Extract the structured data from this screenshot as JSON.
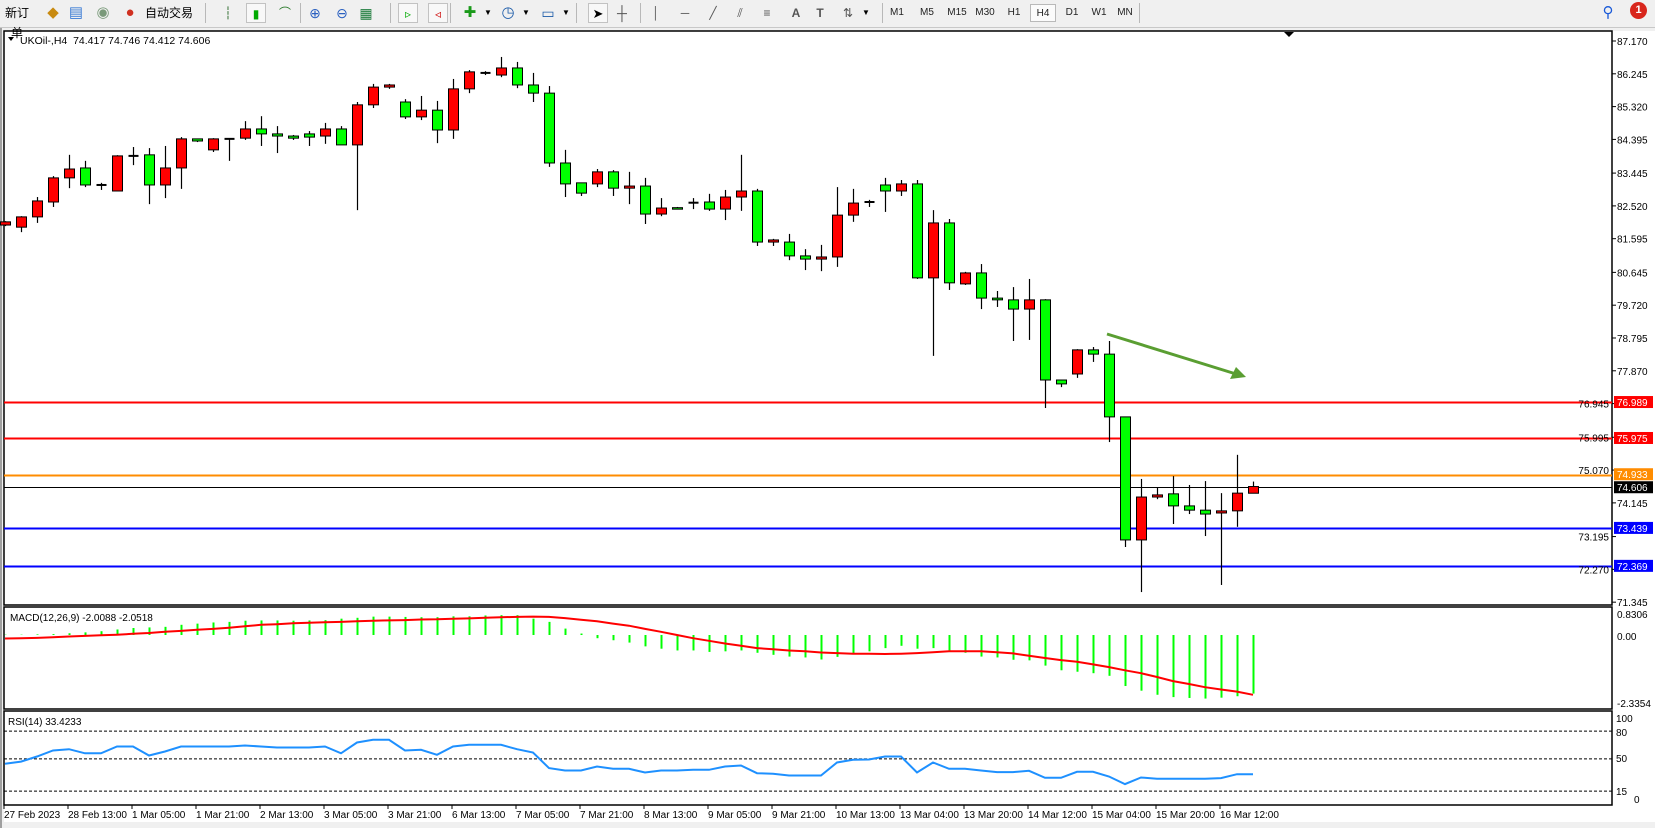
{
  "toolbar": {
    "new_order_label": "新订单",
    "auto_trading_label": "自动交易",
    "timeframes": [
      "M1",
      "M5",
      "M15",
      "M30",
      "H1",
      "H4",
      "D1",
      "W1",
      "MN"
    ],
    "active_timeframe": "H4",
    "notification_count": "1"
  },
  "chart": {
    "header": "UKOil-,H4  74.417 74.746 74.412 74.606",
    "symbol": "UKOil-",
    "timeframe": "H4",
    "ohlc_last": {
      "open": 74.417,
      "high": 74.746,
      "low": 74.412,
      "close": 74.606
    },
    "bull_color": "#ff0000",
    "bear_color": "#00ff00",
    "price_ticks": [
      "87.170",
      "86.245",
      "85.320",
      "84.395",
      "83.445",
      "82.520",
      "81.595",
      "80.645",
      "79.720",
      "78.795",
      "77.870",
      "76.945",
      "75.995",
      "75.070",
      "74.145",
      "73.195",
      "72.270",
      "71.345"
    ],
    "levels": [
      {
        "price": "76.989",
        "color": "#ff0000"
      },
      {
        "price": "75.975",
        "color": "#ff0000"
      },
      {
        "price": "74.933",
        "color": "#ff8c00"
      },
      {
        "price": "74.606",
        "color": "#000000"
      },
      {
        "price": "73.439",
        "color": "#0000ff"
      },
      {
        "price": "72.369",
        "color": "#0000ff"
      }
    ],
    "arrow_color": "#5a9e32",
    "time_labels": [
      "27 Feb 2023",
      "28 Feb 13:00",
      "1 Mar 05:00",
      "1 Mar 21:00",
      "2 Mar 13:00",
      "3 Mar 05:00",
      "3 Mar 21:00",
      "6 Mar 13:00",
      "7 Mar 05:00",
      "7 Mar 21:00",
      "8 Mar 13:00",
      "9 Mar 05:00",
      "9 Mar 21:00",
      "10 Mar 13:00",
      "13 Mar 04:00",
      "13 Mar 20:00",
      "14 Mar 12:00",
      "15 Mar 04:00",
      "15 Mar 20:00",
      "16 Mar 12:00"
    ]
  },
  "chart_data": {
    "type": "candlestick",
    "ylim": [
      71.345,
      87.17
    ],
    "candles_ohlc": [
      [
        81.98,
        82.09,
        81.95,
        82.07
      ],
      [
        81.92,
        82.23,
        81.78,
        82.21
      ],
      [
        82.21,
        82.77,
        82.04,
        82.66
      ],
      [
        82.63,
        83.36,
        82.49,
        83.31
      ],
      [
        83.31,
        83.96,
        83.02,
        83.56
      ],
      [
        83.59,
        83.79,
        83.05,
        83.11
      ],
      [
        83.11,
        83.17,
        82.97,
        83.11
      ],
      [
        82.94,
        83.95,
        82.93,
        83.93
      ],
      [
        83.93,
        84.18,
        83.67,
        83.93
      ],
      [
        83.96,
        84.15,
        82.57,
        83.11
      ],
      [
        83.11,
        84.21,
        82.74,
        83.59
      ],
      [
        83.59,
        84.46,
        83.0,
        84.41
      ],
      [
        84.41,
        84.41,
        84.32,
        84.35
      ],
      [
        84.1,
        84.43,
        84.04,
        84.41
      ],
      [
        84.41,
        84.43,
        83.79,
        84.41
      ],
      [
        84.43,
        84.91,
        84.38,
        84.69
      ],
      [
        84.69,
        85.05,
        84.21,
        84.55
      ],
      [
        84.55,
        84.77,
        84.01,
        84.49
      ],
      [
        84.49,
        84.52,
        84.38,
        84.43
      ],
      [
        84.55,
        84.63,
        84.21,
        84.46
      ],
      [
        84.49,
        84.86,
        84.27,
        84.69
      ],
      [
        84.69,
        84.77,
        84.24,
        84.24
      ],
      [
        84.24,
        85.45,
        82.4,
        85.37
      ],
      [
        85.37,
        85.96,
        85.28,
        85.87
      ],
      [
        85.87,
        85.96,
        85.82,
        85.93
      ],
      [
        85.45,
        85.53,
        84.97,
        85.03
      ],
      [
        85.03,
        85.62,
        84.94,
        85.22
      ],
      [
        85.22,
        85.48,
        84.29,
        84.66
      ],
      [
        84.66,
        86.1,
        84.41,
        85.82
      ],
      [
        85.82,
        86.35,
        85.7,
        86.3
      ],
      [
        86.27,
        86.32,
        86.21,
        86.27
      ],
      [
        86.21,
        86.72,
        86.15,
        86.41
      ],
      [
        86.41,
        86.58,
        85.84,
        85.93
      ],
      [
        85.93,
        86.27,
        85.45,
        85.7
      ],
      [
        85.7,
        85.9,
        83.62,
        83.73
      ],
      [
        83.73,
        84.1,
        82.77,
        83.14
      ],
      [
        83.17,
        83.17,
        82.8,
        82.88
      ],
      [
        83.14,
        83.56,
        83.05,
        83.48
      ],
      [
        83.48,
        83.53,
        82.8,
        83.02
      ],
      [
        83.02,
        83.48,
        82.57,
        83.08
      ],
      [
        83.08,
        83.31,
        82.01,
        82.29
      ],
      [
        82.29,
        82.74,
        82.23,
        82.46
      ],
      [
        82.47,
        82.49,
        82.43,
        82.46
      ],
      [
        82.61,
        82.74,
        82.43,
        82.61
      ],
      [
        82.63,
        82.86,
        82.38,
        82.43
      ],
      [
        82.43,
        82.97,
        82.12,
        82.77
      ],
      [
        82.77,
        83.96,
        82.38,
        82.94
      ],
      [
        82.94,
        83.0,
        81.39,
        81.5
      ],
      [
        81.5,
        81.59,
        81.39,
        81.56
      ],
      [
        81.5,
        81.73,
        80.99,
        81.11
      ],
      [
        81.11,
        81.3,
        80.71,
        81.02
      ],
      [
        81.02,
        81.42,
        80.68,
        81.08
      ],
      [
        81.08,
        83.05,
        80.8,
        82.26
      ],
      [
        82.26,
        83.0,
        82.07,
        82.6
      ],
      [
        82.63,
        82.69,
        82.49,
        82.63
      ],
      [
        83.11,
        83.31,
        82.35,
        82.94
      ],
      [
        82.94,
        83.25,
        82.8,
        83.14
      ],
      [
        83.14,
        83.25,
        80.46,
        80.49
      ],
      [
        80.49,
        82.4,
        78.29,
        82.04
      ],
      [
        82.04,
        82.15,
        80.15,
        80.35
      ],
      [
        80.32,
        80.66,
        80.29,
        80.63
      ],
      [
        80.63,
        80.88,
        79.61,
        79.92
      ],
      [
        79.92,
        80.12,
        79.67,
        79.87
      ],
      [
        79.87,
        80.23,
        78.71,
        79.61
      ],
      [
        79.61,
        80.46,
        78.74,
        79.87
      ],
      [
        79.87,
        79.89,
        76.82,
        77.61
      ],
      [
        77.61,
        77.61,
        77.41,
        77.5
      ],
      [
        77.78,
        78.48,
        77.67,
        78.46
      ],
      [
        78.46,
        78.54,
        78.12,
        78.34
      ],
      [
        78.34,
        78.71,
        75.86,
        76.57
      ],
      [
        76.57,
        76.57,
        72.9,
        73.1
      ],
      [
        73.1,
        74.82,
        71.63,
        74.31
      ],
      [
        74.31,
        74.59,
        74.25,
        74.37
      ],
      [
        74.4,
        74.9,
        73.55,
        74.06
      ],
      [
        74.06,
        74.65,
        73.83,
        73.94
      ],
      [
        73.94,
        74.76,
        73.21,
        73.83
      ],
      [
        73.86,
        74.42,
        71.83,
        73.92
      ],
      [
        73.92,
        75.5,
        73.47,
        74.42
      ],
      [
        74.417,
        74.746,
        74.412,
        74.606
      ]
    ],
    "macd": {
      "label": "MACD(12,26,9) -2.0088 -2.0518",
      "ylim": [
        -2.3354,
        0.8306
      ],
      "tick_labels": [
        "0.8306",
        "0.00",
        "-2.3354"
      ],
      "hist_color": "#00ff00",
      "signal_color": "#ff0000",
      "main": [
        0.01,
        0.01,
        0.02,
        0.03,
        0.06,
        0.09,
        0.13,
        0.19,
        0.24,
        0.26,
        0.28,
        0.35,
        0.39,
        0.43,
        0.45,
        0.49,
        0.5,
        0.5,
        0.49,
        0.5,
        0.51,
        0.56,
        0.59,
        0.63,
        0.63,
        0.62,
        0.61,
        0.61,
        0.64,
        0.64,
        0.67,
        0.68,
        0.68,
        0.56,
        0.45,
        0.22,
        0.05,
        -0.11,
        -0.18,
        -0.26,
        -0.39,
        -0.47,
        -0.53,
        -0.53,
        -0.58,
        -0.56,
        -0.53,
        -0.61,
        -0.68,
        -0.74,
        -0.77,
        -0.84,
        -0.75,
        -0.63,
        -0.56,
        -0.45,
        -0.37,
        -0.47,
        -0.45,
        -0.53,
        -0.61,
        -0.74,
        -0.77,
        -0.85,
        -0.87,
        -1.05,
        -1.21,
        -1.26,
        -1.31,
        -1.4,
        -1.75,
        -1.91,
        -2.05,
        -2.13,
        -2.16,
        -2.18,
        -2.15,
        -2.1,
        -2.0088
      ],
      "signal": [
        -0.12,
        -0.11,
        -0.1,
        -0.08,
        -0.05,
        -0.03,
        -0.01,
        0.01,
        0.04,
        0.07,
        0.11,
        0.14,
        0.18,
        0.21,
        0.25,
        0.3,
        0.35,
        0.37,
        0.4,
        0.42,
        0.44,
        0.45,
        0.47,
        0.49,
        0.5,
        0.51,
        0.53,
        0.54,
        0.56,
        0.57,
        0.59,
        0.61,
        0.62,
        0.63,
        0.62,
        0.58,
        0.52,
        0.47,
        0.39,
        0.32,
        0.21,
        0.11,
        0.0,
        -0.11,
        -0.2,
        -0.29,
        -0.37,
        -0.45,
        -0.49,
        -0.53,
        -0.56,
        -0.6,
        -0.62,
        -0.64,
        -0.64,
        -0.65,
        -0.64,
        -0.62,
        -0.59,
        -0.56,
        -0.56,
        -0.56,
        -0.59,
        -0.63,
        -0.71,
        -0.79,
        -0.86,
        -0.92,
        -1.01,
        -1.1,
        -1.21,
        -1.31,
        -1.44,
        -1.58,
        -1.68,
        -1.79,
        -1.87,
        -1.94,
        -2.0518
      ]
    },
    "rsi": {
      "label": "RSI(14) 33.4233",
      "ylim": [
        0,
        100
      ],
      "tick_labels": [
        "100",
        "80",
        "50",
        "15",
        "0"
      ],
      "levels": [
        80,
        50,
        15
      ],
      "color": "#1e90ff",
      "values": [
        44.6,
        47,
        52.6,
        59,
        60.5,
        56,
        56,
        63.4,
        63.4,
        53.6,
        58,
        63.4,
        63.4,
        63.4,
        63.4,
        64.5,
        63.4,
        62.3,
        62.3,
        62.3,
        63.4,
        56,
        67.7,
        70.6,
        70.6,
        59,
        59.8,
        54.4,
        63.4,
        65.2,
        65.2,
        65.2,
        60.5,
        56.9,
        40,
        37.4,
        37.4,
        41.7,
        39.2,
        39.2,
        35.2,
        37.4,
        37.4,
        38.1,
        38.1,
        41.7,
        42.8,
        34.5,
        33.8,
        32,
        32,
        32,
        46,
        49,
        49.3,
        52.6,
        52.6,
        35.2,
        46,
        39.2,
        39.2,
        37.4,
        35.6,
        35.6,
        37,
        29.5,
        29.5,
        36,
        36,
        30.9,
        22.6,
        29.8,
        28.4,
        28.4,
        28.4,
        28.4,
        29.1,
        33.4,
        33.4233
      ]
    }
  }
}
